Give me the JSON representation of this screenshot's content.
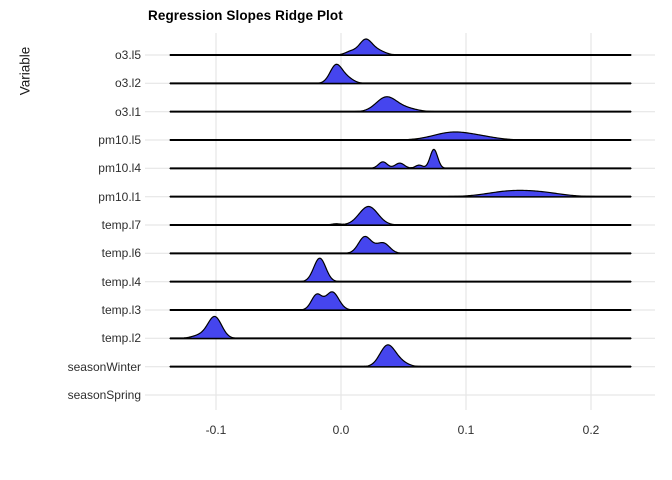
{
  "page": {
    "title": "Regression Slopes Ridge Plot",
    "y_axis_title": "Variable"
  },
  "chart_data": {
    "type": "ridgeline",
    "title": "Regression Slopes Ridge Plot",
    "xlabel": "",
    "ylabel": "Variable",
    "legend": "none",
    "grid": "major-only",
    "fill_color": "#4545ee",
    "line_color": "#000000",
    "baseline_color": "#000000",
    "grid_color": "#e6e6e6",
    "x_ticks": [
      {
        "label": "-0.1",
        "value": -0.1
      },
      {
        "label": "0.0",
        "value": 0.0
      },
      {
        "label": "0.1",
        "value": 0.1
      },
      {
        "label": "0.2",
        "value": 0.2
      }
    ],
    "x_range_line": [
      -0.1368,
      0.232
    ],
    "categories": [
      "o3.l5",
      "o3.l2",
      "o3.l1",
      "pm10.l5",
      "pm10.l4",
      "pm10.l1",
      "temp.l7",
      "temp.l6",
      "temp.l4",
      "temp.l3",
      "temp.l2",
      "seasonWinter",
      "seasonSpring"
    ],
    "series": [
      {
        "name": "o3.l5",
        "mode": 0.02,
        "has_ridge": true,
        "components": [
          [
            0.0195,
            0.005,
            14.5
          ],
          [
            0.008,
            0.0045,
            3.5
          ],
          [
            0.029,
            0.006,
            4.5
          ]
        ]
      },
      {
        "name": "o3.l2",
        "mode": -0.004,
        "has_ridge": true,
        "components": [
          [
            -0.004,
            0.0048,
            18
          ],
          [
            0.005,
            0.005,
            5
          ]
        ]
      },
      {
        "name": "o3.l1",
        "mode": 0.037,
        "has_ridge": true,
        "components": [
          [
            0.036,
            0.008,
            14
          ],
          [
            0.051,
            0.009,
            3.5
          ]
        ]
      },
      {
        "name": "pm10.l5",
        "mode": 0.092,
        "has_ridge": true,
        "components": [
          [
            0.089,
            0.015,
            7.5
          ],
          [
            0.113,
            0.013,
            2.5
          ]
        ]
      },
      {
        "name": "pm10.l4",
        "mode": 0.074,
        "has_ridge": true,
        "components": [
          [
            0.0335,
            0.0035,
            6.5
          ],
          [
            0.047,
            0.0037,
            5.2
          ],
          [
            0.0625,
            0.003,
            3.2
          ],
          [
            0.0743,
            0.003,
            19
          ]
        ]
      },
      {
        "name": "pm10.l1",
        "mode": 0.143,
        "has_ridge": true,
        "components": [
          [
            0.135,
            0.018,
            5.2
          ],
          [
            0.162,
            0.016,
            3.2
          ]
        ]
      },
      {
        "name": "temp.l7",
        "mode": 0.022,
        "has_ridge": true,
        "components": [
          [
            0.022,
            0.0075,
            18.5
          ],
          [
            -0.004,
            0.0035,
            1.2
          ]
        ]
      },
      {
        "name": "temp.l6",
        "mode": 0.019,
        "has_ridge": true,
        "components": [
          [
            0.019,
            0.005,
            16.5
          ],
          [
            0.027,
            0.004,
            2
          ],
          [
            0.034,
            0.005,
            10
          ]
        ]
      },
      {
        "name": "temp.l4",
        "mode": -0.017,
        "has_ridge": true,
        "components": [
          [
            -0.017,
            0.0048,
            23.5
          ]
        ]
      },
      {
        "name": "temp.l3",
        "mode": -0.008,
        "has_ridge": true,
        "components": [
          [
            -0.0195,
            0.0042,
            15
          ],
          [
            -0.007,
            0.0052,
            18
          ]
        ]
      },
      {
        "name": "temp.l2",
        "mode": -0.101,
        "has_ridge": true,
        "components": [
          [
            -0.101,
            0.0055,
            21.5
          ],
          [
            -0.113,
            0.006,
            3
          ]
        ]
      },
      {
        "name": "seasonWinter",
        "mode": 0.038,
        "has_ridge": true,
        "components": [
          [
            0.037,
            0.006,
            20.5
          ],
          [
            0.047,
            0.0062,
            4.5
          ]
        ]
      },
      {
        "name": "seasonSpring",
        "mode": null,
        "has_ridge": false,
        "components": []
      }
    ]
  }
}
